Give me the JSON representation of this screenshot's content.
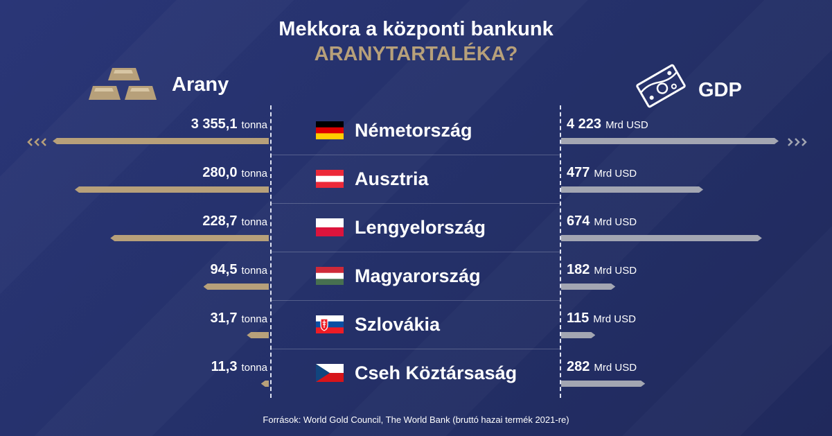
{
  "title_line1": "Mekkora a központi bankunk",
  "title_line2": "ARANYTARTALÉKA?",
  "left_header": "Arany",
  "right_header": "GDP",
  "source": "Források: World Gold Council, The World Bank (bruttó hazai termék 2021-re)",
  "colors": {
    "background": "#27326b",
    "gold": "#b7a07a",
    "grey": "#a3a6b2",
    "text": "#ffffff"
  },
  "icons": {
    "left": "gold-bars-icon",
    "right": "banknote-icon"
  },
  "chart_data": {
    "type": "bar",
    "categories": [
      "Németország",
      "Ausztria",
      "Lengyelország",
      "Magyarország",
      "Szlovákia",
      "Cseh Köztársaság"
    ],
    "series": [
      {
        "name": "Arany",
        "unit": "tonna",
        "values": [
          3355.1,
          280.0,
          228.7,
          94.5,
          31.7,
          11.3
        ],
        "labels": [
          "3 355,1",
          "280,0",
          "228,7",
          "94,5",
          "31,7",
          "11,3"
        ],
        "truncated": [
          true,
          false,
          false,
          false,
          false,
          false
        ]
      },
      {
        "name": "GDP",
        "unit": "Mrd USD",
        "values": [
          4223,
          477,
          674,
          182,
          115,
          282
        ],
        "labels": [
          "4 223",
          "477",
          "674",
          "182",
          "115",
          "282"
        ],
        "truncated": [
          true,
          false,
          false,
          false,
          false,
          false
        ]
      }
    ],
    "flags": [
      "germany-flag",
      "austria-flag",
      "poland-flag",
      "hungary-flag",
      "slovakia-flag",
      "czech-flag"
    ]
  }
}
